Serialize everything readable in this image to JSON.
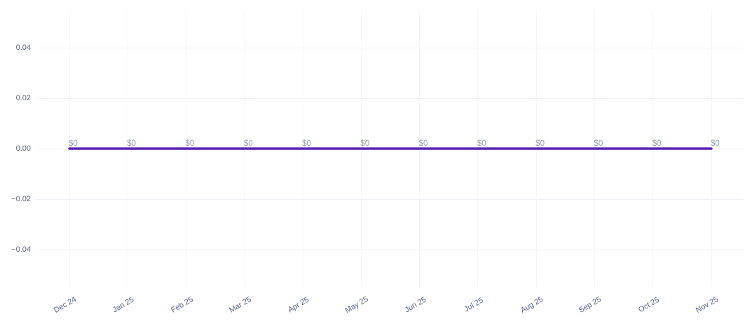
{
  "chart_data": {
    "type": "line",
    "title": "",
    "xlabel": "",
    "ylabel": "",
    "categories": [
      "Dec 24",
      "Jan 25",
      "Feb 25",
      "Mar 25",
      "Apr 25",
      "May 25",
      "Jun 25",
      "Jul 25",
      "Aug 25",
      "Sep 25",
      "Oct 25",
      "Nov 25"
    ],
    "series": [
      {
        "name": "amount",
        "values": [
          0,
          0,
          0,
          0,
          0,
          0,
          0,
          0,
          0,
          0,
          0,
          0
        ],
        "point_labels": [
          "$0",
          "$0",
          "$0",
          "$0",
          "$0",
          "$0",
          "$0",
          "$0",
          "$0",
          "$0",
          "$0",
          "$0"
        ],
        "color": "#5a23b4"
      }
    ],
    "y_ticks": [
      {
        "label": "0.04",
        "value": 0.04
      },
      {
        "label": "0.02",
        "value": 0.02
      },
      {
        "label": "0.00",
        "value": 0.0
      },
      {
        "label": "−0.02",
        "value": -0.02
      },
      {
        "label": "−0.04",
        "value": -0.04
      }
    ],
    "ylim": [
      -0.055,
      0.055
    ],
    "grid": true,
    "legend_position": "none",
    "colors": {
      "background": "#ffffff",
      "h_gridline": "#f3f0fa",
      "v_gridline": "#f7f4fc",
      "axis_label": "#5b6490",
      "point_label": "#99a1b0",
      "line": "#5a23b4"
    }
  }
}
